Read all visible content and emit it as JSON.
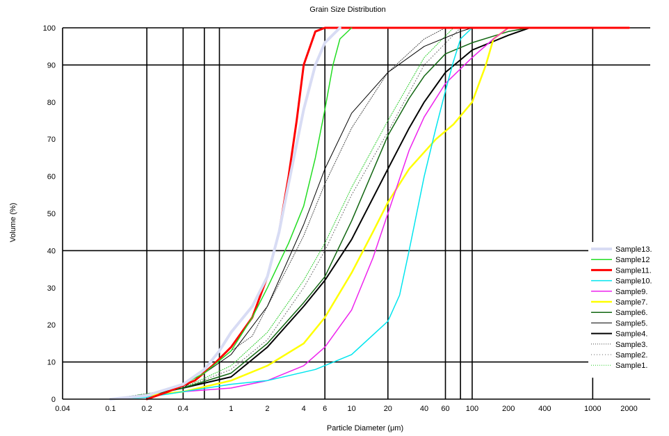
{
  "chart_data": {
    "type": "line",
    "title": "Grain Size Distribution",
    "xlabel": "Particle Diameter (μm)",
    "ylabel": "Volume (%)",
    "x_scale": "log",
    "xlim": [
      0.04,
      3000
    ],
    "ylim": [
      0,
      100
    ],
    "x_ticks": [
      0.04,
      0.1,
      0.2,
      0.4,
      1,
      2,
      4,
      6,
      10,
      20,
      40,
      60,
      100,
      200,
      400,
      1000,
      2000
    ],
    "x_tick_labels": [
      "0.04",
      "0.1",
      "0.2",
      "0.4",
      "1",
      "2",
      "4",
      "6",
      "10",
      "20",
      "40",
      "60",
      "100",
      "200",
      "400",
      "1000",
      "2000"
    ],
    "y_ticks": [
      0,
      10,
      20,
      30,
      40,
      50,
      60,
      70,
      80,
      90,
      100
    ],
    "y_tick_labels": [
      "0",
      "10",
      "20",
      "30",
      "40",
      "50",
      "60",
      "70",
      "80",
      "90",
      "100"
    ],
    "gridlines": [
      0.2,
      0.4,
      0.6,
      0.8,
      6,
      20,
      60,
      80,
      100,
      1000
    ],
    "hgridlines": [
      10,
      40,
      90,
      100
    ],
    "legend_position": "bottom-right",
    "series": [
      {
        "name": "Sample13.",
        "color": "#d8dcf4",
        "width": 4,
        "dash": "",
        "x": [
          0.1,
          0.2,
          0.4,
          0.6,
          0.8,
          1,
          1.5,
          2,
          2.5,
          3,
          4,
          5,
          6,
          8
        ],
        "y": [
          0,
          1,
          4,
          8,
          13,
          18,
          25,
          33,
          45,
          58,
          78,
          90,
          96,
          100
        ]
      },
      {
        "name": "Sample12",
        "color": "#22dd22",
        "width": 1.5,
        "dash": "",
        "x": [
          0.1,
          0.2,
          0.4,
          0.6,
          1,
          1.5,
          2,
          3,
          4,
          5,
          6,
          7,
          8,
          10
        ],
        "y": [
          0,
          1,
          4,
          7,
          13,
          22,
          30,
          42,
          52,
          65,
          78,
          90,
          97,
          100
        ]
      },
      {
        "name": "Sample11.",
        "color": "#ff0000",
        "width": 3,
        "dash": "",
        "x": [
          0.2,
          0.3,
          0.5,
          0.7,
          1,
          1.5,
          2,
          2.5,
          3,
          3.5,
          4,
          5,
          6,
          100,
          2000
        ],
        "y": [
          0,
          2,
          5,
          9,
          14,
          22,
          33,
          45,
          60,
          75,
          90,
          99,
          100,
          100,
          100
        ]
      },
      {
        "name": "Sample10.",
        "color": "#00e5ee",
        "width": 1.5,
        "dash": "",
        "x": [
          0.1,
          0.2,
          0.4,
          1,
          2,
          5,
          10,
          20,
          25,
          30,
          40,
          50,
          60,
          70,
          80,
          100
        ],
        "y": [
          0,
          0.5,
          2,
          4,
          5,
          8,
          12,
          21,
          28,
          40,
          60,
          73,
          83,
          91,
          97,
          100
        ]
      },
      {
        "name": "Sample9.",
        "color": "#ee22ee",
        "width": 1.5,
        "dash": "",
        "x": [
          0.4,
          1,
          2,
          4,
          6,
          10,
          15,
          20,
          30,
          40,
          60,
          100,
          150,
          200
        ],
        "y": [
          2,
          3,
          5,
          9,
          14,
          24,
          38,
          50,
          67,
          76,
          85,
          92,
          97,
          100
        ]
      },
      {
        "name": "Sample7.",
        "color": "#ffff00",
        "width": 2.5,
        "dash": "",
        "x": [
          0.1,
          0.2,
          0.4,
          1,
          2,
          4,
          6,
          10,
          15,
          20,
          30,
          50,
          70,
          100,
          130,
          150,
          200
        ],
        "y": [
          0,
          1,
          2,
          5,
          9,
          15,
          22,
          34,
          45,
          53,
          62,
          70,
          74,
          80,
          90,
          97,
          100
        ]
      },
      {
        "name": "Sample6.",
        "color": "#116611",
        "width": 1.5,
        "dash": "",
        "x": [
          0.1,
          0.2,
          0.4,
          1,
          2,
          4,
          6,
          10,
          20,
          30,
          40,
          60,
          100,
          200,
          300
        ],
        "y": [
          0,
          1,
          3,
          7,
          15,
          26,
          33,
          48,
          71,
          81,
          87,
          93,
          96,
          99,
          100
        ]
      },
      {
        "name": "Sample5.",
        "color": "#000000",
        "width": 1,
        "dash": "",
        "x": [
          0.1,
          0.2,
          0.4,
          1,
          2,
          4,
          6,
          10,
          20,
          40,
          80,
          100
        ],
        "y": [
          0,
          1,
          3,
          12,
          25,
          47,
          62,
          77,
          88,
          95,
          99,
          100
        ]
      },
      {
        "name": "Sample4.",
        "color": "#000000",
        "width": 2,
        "dash": "",
        "x": [
          0.1,
          0.2,
          0.4,
          1,
          2,
          4,
          6,
          10,
          20,
          30,
          40,
          60,
          100,
          200,
          300
        ],
        "y": [
          0,
          1,
          3,
          6,
          14,
          25,
          32,
          43,
          62,
          73,
          80,
          88,
          94,
          98,
          100
        ]
      },
      {
        "name": "Sample3.",
        "color": "#444444",
        "width": 1,
        "dash": "1,2",
        "x": [
          0.1,
          0.3,
          0.6,
          1,
          1.5,
          2,
          3,
          4,
          6,
          10,
          20,
          40,
          60
        ],
        "y": [
          0,
          2,
          7,
          13,
          17,
          25,
          36,
          44,
          58,
          73,
          88,
          97,
          100
        ]
      },
      {
        "name": "Sample2.",
        "color": "#666666",
        "width": 1,
        "dash": "1,3",
        "x": [
          0.1,
          0.4,
          1,
          2,
          4,
          6,
          10,
          20,
          40,
          80
        ],
        "y": [
          0,
          3,
          8,
          16,
          30,
          40,
          55,
          72,
          90,
          100
        ]
      },
      {
        "name": "Sample1.",
        "color": "#22cc22",
        "width": 1,
        "dash": "1,2",
        "x": [
          0.1,
          0.4,
          1,
          2,
          4,
          6,
          10,
          20,
          40,
          70
        ],
        "y": [
          0,
          3,
          9,
          18,
          32,
          42,
          57,
          75,
          92,
          100
        ]
      }
    ]
  }
}
